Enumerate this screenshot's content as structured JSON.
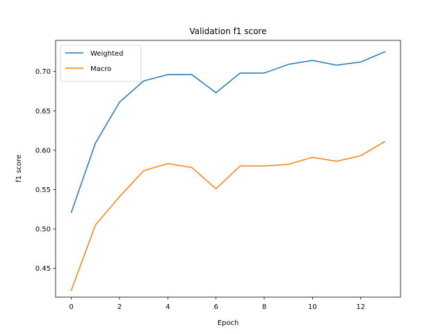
{
  "chart_data": {
    "type": "line",
    "title": "Validation f1 score",
    "xlabel": "Epoch",
    "ylabel": "f1 score",
    "x": [
      0,
      1,
      2,
      3,
      4,
      5,
      6,
      7,
      8,
      9,
      10,
      11,
      12,
      13
    ],
    "xlim": [
      -0.65,
      13.65
    ],
    "ylim": [
      0.4135,
      0.7395
    ],
    "xticks": [
      0,
      2,
      4,
      6,
      8,
      10,
      12
    ],
    "yticks": [
      0.45,
      0.5,
      0.55,
      0.6,
      0.65,
      0.7
    ],
    "ytick_labels": [
      "0.45",
      "0.50",
      "0.55",
      "0.60",
      "0.65",
      "0.70"
    ],
    "grid": false,
    "legend": "top-left",
    "series": [
      {
        "name": "Weighted",
        "color": "#1f77b4",
        "values": [
          0.521,
          0.609,
          0.661,
          0.688,
          0.696,
          0.696,
          0.673,
          0.698,
          0.698,
          0.709,
          0.714,
          0.708,
          0.712,
          0.725
        ]
      },
      {
        "name": "Macro",
        "color": "#ff7f0e",
        "values": [
          0.422,
          0.505,
          0.541,
          0.574,
          0.583,
          0.578,
          0.551,
          0.58,
          0.58,
          0.582,
          0.591,
          0.586,
          0.593,
          0.611
        ]
      }
    ]
  }
}
